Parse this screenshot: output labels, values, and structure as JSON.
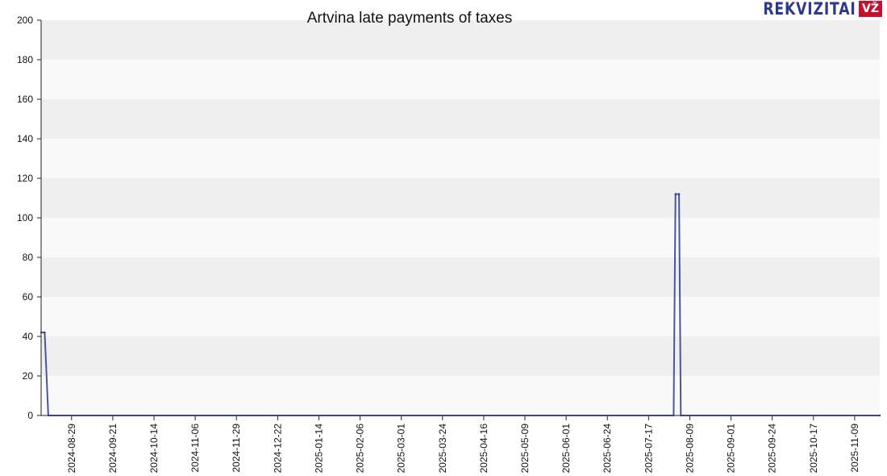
{
  "chart_data": {
    "type": "line",
    "title": "Artvina late payments of taxes",
    "xlabel": "",
    "ylabel": "",
    "ylim": [
      0,
      200
    ],
    "yticks": [
      0,
      20,
      40,
      60,
      80,
      100,
      120,
      140,
      160,
      180,
      200
    ],
    "x_range": [
      "2024-08-12",
      "2025-11-23"
    ],
    "xticks": [
      "2024-08-29",
      "2024-09-21",
      "2024-10-14",
      "2024-11-06",
      "2024-11-29",
      "2024-12-22",
      "2025-01-14",
      "2025-02-06",
      "2025-03-01",
      "2025-03-24",
      "2025-04-16",
      "2025-05-09",
      "2025-06-01",
      "2025-06-24",
      "2025-07-17",
      "2025-08-09",
      "2025-09-01",
      "2025-09-24",
      "2025-10-17",
      "2025-11-09"
    ],
    "grid": true,
    "legend": "none",
    "series": [
      {
        "color": "#2d3a8c",
        "points": [
          [
            "2024-08-12",
            42
          ],
          [
            "2024-08-14",
            42
          ],
          [
            "2024-08-16",
            0
          ],
          [
            "2025-07-31",
            0
          ],
          [
            "2025-08-01",
            112
          ],
          [
            "2025-08-03",
            112
          ],
          [
            "2025-08-04",
            0
          ],
          [
            "2025-11-23",
            0
          ]
        ]
      }
    ]
  },
  "branding": {
    "logo_text": "REKVIZITAI",
    "logo_badge": "VŽ"
  }
}
